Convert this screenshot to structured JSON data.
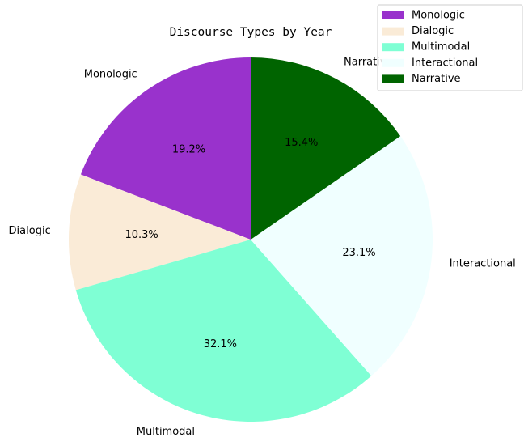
{
  "chart_data": {
    "type": "pie",
    "title": "Discourse Types by Year",
    "start_angle_deg": 90,
    "direction": "counterclockwise",
    "legend_position": "top-right",
    "slices": [
      {
        "label": "Monologic",
        "percent": 19.2,
        "percent_label": "19.2%",
        "color": "#9932CC"
      },
      {
        "label": "Dialogic",
        "percent": 10.3,
        "percent_label": "10.3%",
        "color": "#FAEBD7"
      },
      {
        "label": "Multimodal",
        "percent": 32.1,
        "percent_label": "32.1%",
        "color": "#7FFFD4"
      },
      {
        "label": "Interactional",
        "percent": 23.1,
        "percent_label": "23.1%",
        "color": "#F0FFFF"
      },
      {
        "label": "Narrative",
        "percent": 15.4,
        "percent_label": "15.4%",
        "color": "#006400"
      }
    ]
  }
}
